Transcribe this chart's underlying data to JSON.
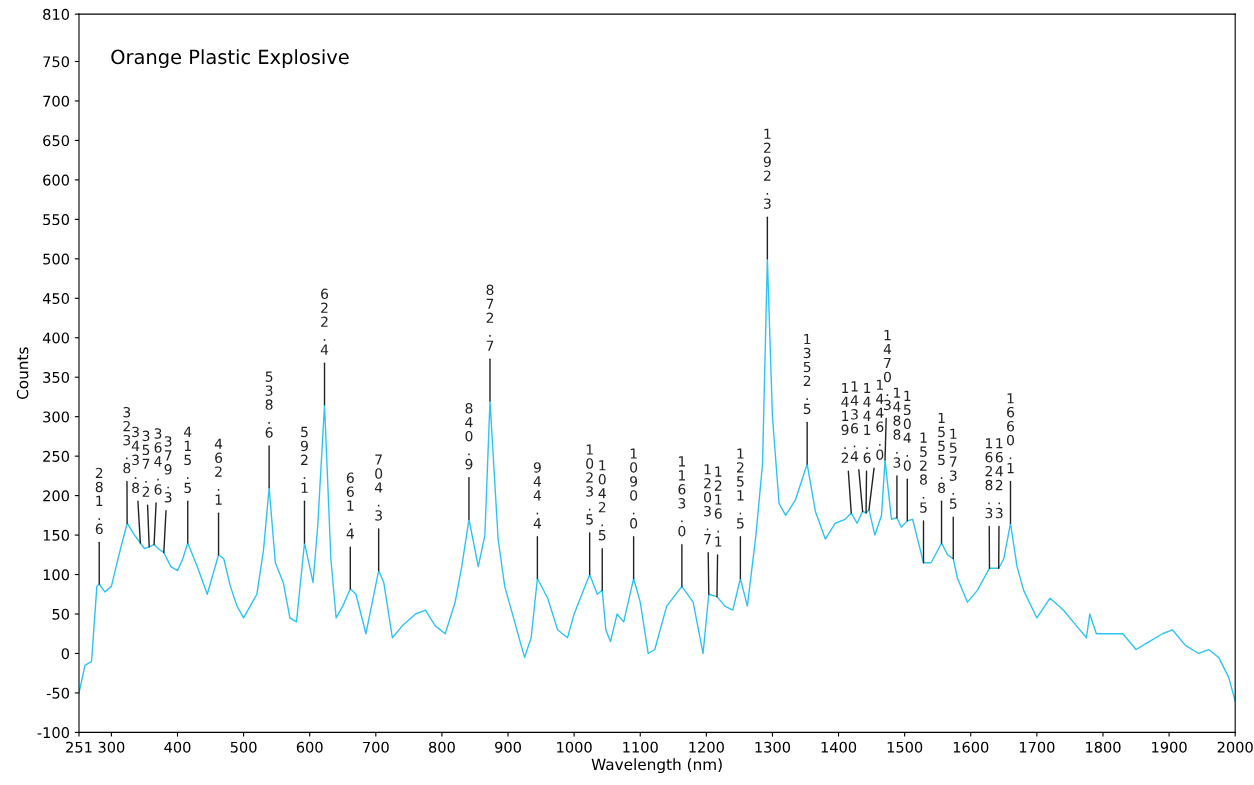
{
  "chart_data": {
    "type": "line",
    "title": "Orange Plastic Explosive",
    "xlabel": "Wavelength (nm)",
    "ylabel": "Counts",
    "xlim": [
      251,
      2000
    ],
    "xticks": [
      251,
      300,
      400,
      500,
      600,
      700,
      800,
      900,
      1000,
      1100,
      1200,
      1300,
      1400,
      1500,
      1600,
      1700,
      1800,
      1900,
      2000
    ],
    "ylim": [
      -100,
      810
    ],
    "yticks": [
      -100,
      -50,
      0,
      50,
      100,
      150,
      200,
      250,
      300,
      350,
      400,
      450,
      500,
      550,
      600,
      650,
      700,
      750,
      810
    ],
    "series": [
      {
        "color": "#2ec4f2",
        "x": [
          251,
          260,
          270,
          278,
          281.6,
          290,
          300,
          310,
          323.8,
          335,
          343.8,
          350,
          357.2,
          364.6,
          372,
          379.3,
          390,
          400,
          408,
          415.5,
          430,
          445,
          462.1,
          470,
          480,
          490,
          500,
          510,
          520,
          530,
          538.6,
          548,
          560,
          570,
          580,
          592.1,
          605,
          612,
          622.4,
          632,
          640,
          650,
          661.4,
          670,
          685,
          704.3,
          712,
          725,
          740,
          760,
          775,
          790,
          805,
          820,
          830,
          840.9,
          855,
          865,
          872.7,
          885,
          895,
          910,
          925,
          935,
          944.4,
          960,
          975,
          990,
          1000,
          1023.5,
          1035,
          1042.5,
          1048,
          1055,
          1065,
          1075,
          1090,
          1100,
          1112,
          1122,
          1140,
          1163,
          1180,
          1195,
          1203.7,
          1216.1,
          1228,
          1240,
          1251.5,
          1262,
          1275,
          1285,
          1292.3,
          1300,
          1310,
          1320,
          1335,
          1352.5,
          1365,
          1380,
          1395,
          1410,
          1419.2,
          1428,
          1436.4,
          1441.6,
          1446.0,
          1455,
          1465,
          1470.3,
          1480,
          1488.3,
          1495,
          1504.0,
          1512,
          1528.5,
          1540,
          1555.8,
          1565,
          1573.5,
          1580,
          1595,
          1610,
          1628.3,
          1642.3,
          1650,
          1660.1,
          1670,
          1680,
          1700,
          1720,
          1740,
          1760,
          1775,
          1780,
          1790,
          1810,
          1830,
          1850,
          1870,
          1890,
          1905,
          1925,
          1945,
          1960,
          1975,
          1990,
          2000
        ],
        "values": [
          -50,
          -15,
          -10,
          85,
          88,
          78,
          85,
          120,
          165,
          150,
          140,
          133,
          135,
          138,
          132,
          128,
          110,
          105,
          120,
          140,
          110,
          75,
          125,
          120,
          85,
          60,
          45,
          60,
          75,
          130,
          210,
          115,
          90,
          45,
          40,
          140,
          90,
          160,
          315,
          120,
          45,
          60,
          82,
          75,
          25,
          105,
          90,
          20,
          35,
          50,
          55,
          35,
          25,
          65,
          110,
          170,
          110,
          150,
          320,
          145,
          85,
          40,
          -5,
          20,
          95,
          70,
          30,
          20,
          50,
          100,
          75,
          80,
          30,
          15,
          50,
          40,
          95,
          65,
          0,
          5,
          60,
          85,
          65,
          0,
          75,
          72,
          60,
          55,
          95,
          60,
          150,
          240,
          500,
          300,
          190,
          175,
          195,
          240,
          180,
          145,
          165,
          170,
          178,
          165,
          180,
          178,
          182,
          150,
          175,
          245,
          170,
          172,
          160,
          168,
          170,
          115,
          115,
          140,
          125,
          120,
          95,
          65,
          80,
          108,
          108,
          120,
          165,
          110,
          80,
          45,
          70,
          55,
          35,
          20,
          50,
          25,
          25,
          25,
          5,
          15,
          25,
          30,
          10,
          0,
          5,
          -5,
          -30,
          -60
        ]
      }
    ],
    "annotations": [
      {
        "text": "281.6",
        "x": 281.6,
        "y": 88
      },
      {
        "text": "323.8",
        "x": 323.8,
        "y": 165
      },
      {
        "text": "343.8",
        "x": 343.8,
        "y": 140
      },
      {
        "text": "357.2",
        "x": 357.2,
        "y": 135
      },
      {
        "text": "364.6",
        "x": 364.6,
        "y": 138
      },
      {
        "text": "379.3",
        "x": 379.3,
        "y": 128
      },
      {
        "text": "415.5",
        "x": 415.5,
        "y": 140
      },
      {
        "text": "462.1",
        "x": 462.1,
        "y": 125
      },
      {
        "text": "538.6",
        "x": 538.6,
        "y": 210
      },
      {
        "text": "592.1",
        "x": 592.1,
        "y": 140
      },
      {
        "text": "622.4",
        "x": 622.4,
        "y": 315
      },
      {
        "text": "661.4",
        "x": 661.4,
        "y": 82
      },
      {
        "text": "704.3",
        "x": 704.3,
        "y": 105
      },
      {
        "text": "840.9",
        "x": 840.9,
        "y": 170
      },
      {
        "text": "872.7",
        "x": 872.7,
        "y": 320
      },
      {
        "text": "944.4",
        "x": 944.4,
        "y": 95
      },
      {
        "text": "1023.5",
        "x": 1023.5,
        "y": 100
      },
      {
        "text": "1042.5",
        "x": 1042.5,
        "y": 80
      },
      {
        "text": "1090.0",
        "x": 1090.0,
        "y": 95
      },
      {
        "text": "1163.0",
        "x": 1163.0,
        "y": 85
      },
      {
        "text": "1203.7",
        "x": 1203.7,
        "y": 75
      },
      {
        "text": "1216.1",
        "x": 1216.1,
        "y": 72
      },
      {
        "text": "1251.5",
        "x": 1251.5,
        "y": 95
      },
      {
        "text": "1292.3",
        "x": 1292.3,
        "y": 500
      },
      {
        "text": "1352.5",
        "x": 1352.5,
        "y": 240
      },
      {
        "text": "1419.2",
        "x": 1419.2,
        "y": 178
      },
      {
        "text": "1436.4",
        "x": 1436.4,
        "y": 180
      },
      {
        "text": "1441.6",
        "x": 1441.6,
        "y": 178
      },
      {
        "text": "1446.0",
        "x": 1446.0,
        "y": 182
      },
      {
        "text": "1470.3",
        "x": 1470.3,
        "y": 245
      },
      {
        "text": "1488.3",
        "x": 1488.3,
        "y": 172
      },
      {
        "text": "1504.0",
        "x": 1504.0,
        "y": 168
      },
      {
        "text": "1528.5",
        "x": 1528.5,
        "y": 115
      },
      {
        "text": "1555.8",
        "x": 1555.8,
        "y": 140
      },
      {
        "text": "1573.5",
        "x": 1573.5,
        "y": 120
      },
      {
        "text": "1628.3",
        "x": 1628.3,
        "y": 108
      },
      {
        "text": "1642.3",
        "x": 1642.3,
        "y": 108
      },
      {
        "text": "1660.1",
        "x": 1660.1,
        "y": 165
      }
    ]
  }
}
